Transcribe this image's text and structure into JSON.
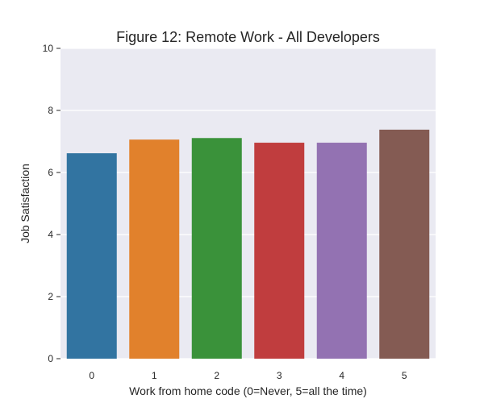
{
  "chart_data": {
    "type": "bar",
    "title": "Figure 12: Remote Work - All Developers",
    "xlabel": "Work from home code (0=Never, 5=all the time)",
    "ylabel": "Job Satisfaction",
    "categories": [
      "0",
      "1",
      "2",
      "3",
      "4",
      "5"
    ],
    "values": [
      6.62,
      7.06,
      7.11,
      6.96,
      6.96,
      7.38
    ],
    "ylim": [
      0,
      10
    ],
    "yticks": [
      0,
      2,
      4,
      6,
      8,
      10
    ],
    "grid": true,
    "legend": "none",
    "colors": [
      "#3274a1",
      "#e1812c",
      "#3a923a",
      "#c03d3e",
      "#9372b2",
      "#845b53"
    ],
    "plot_background": "#eaeaf2"
  }
}
